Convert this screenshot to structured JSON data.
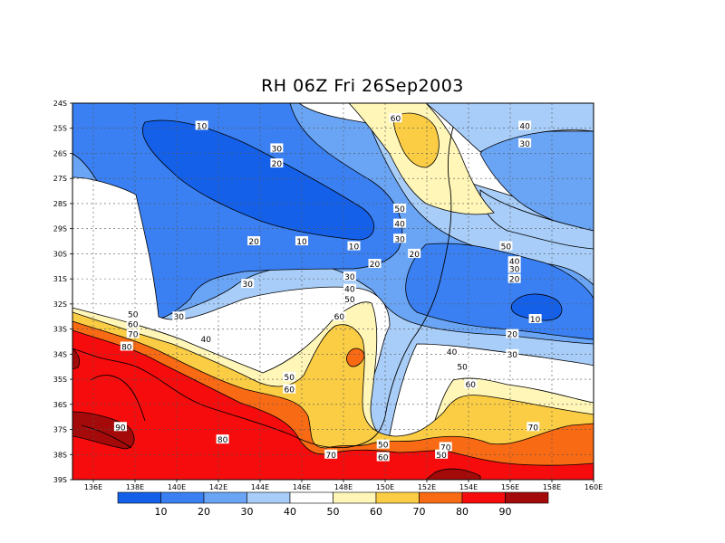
{
  "title": "RH 06Z Fri 26Sep2003",
  "lat_labels": [
    "24S",
    "25S",
    "26S",
    "27S",
    "28S",
    "29S",
    "30S",
    "31S",
    "32S",
    "33S",
    "34S",
    "35S",
    "36S",
    "37S",
    "38S",
    "39S"
  ],
  "lon_labels": [
    "136E",
    "138E",
    "140E",
    "142E",
    "144E",
    "146E",
    "148E",
    "150E",
    "152E",
    "154E",
    "156E",
    "158E",
    "160E"
  ],
  "colorbar": {
    "labels": [
      "10",
      "20",
      "30",
      "40",
      "50",
      "60",
      "70",
      "80",
      "90"
    ],
    "colors": [
      "#1560e8",
      "#3a80f2",
      "#6aa5f5",
      "#a8cdf8",
      "#ffffff",
      "#fff6b8",
      "#fbcd45",
      "#f96a14",
      "#f60c0c",
      "#a50a0a"
    ]
  },
  "contour_labels": [
    {
      "text": "10",
      "lon": 141.2,
      "lat": -24.9
    },
    {
      "text": "60",
      "lon": 150.5,
      "lat": -24.6
    },
    {
      "text": "40",
      "lon": 156.7,
      "lat": -24.9
    },
    {
      "text": "30",
      "lon": 144.8,
      "lat": -25.8
    },
    {
      "text": "20",
      "lon": 144.8,
      "lat": -26.4
    },
    {
      "text": "30",
      "lon": 156.7,
      "lat": -25.6
    },
    {
      "text": "50",
      "lon": 150.7,
      "lat": -28.2
    },
    {
      "text": "40",
      "lon": 150.7,
      "lat": -28.8
    },
    {
      "text": "30",
      "lon": 150.7,
      "lat": -29.4
    },
    {
      "text": "20",
      "lon": 143.7,
      "lat": -29.5
    },
    {
      "text": "10",
      "lon": 146.0,
      "lat": -29.5
    },
    {
      "text": "10",
      "lon": 148.5,
      "lat": -29.7
    },
    {
      "text": "20",
      "lon": 151.4,
      "lat": -30.0
    },
    {
      "text": "50",
      "lon": 155.8,
      "lat": -29.7
    },
    {
      "text": "40",
      "lon": 156.2,
      "lat": -30.3
    },
    {
      "text": "30",
      "lon": 156.2,
      "lat": -30.6
    },
    {
      "text": "20",
      "lon": 156.2,
      "lat": -31.0
    },
    {
      "text": "20",
      "lon": 149.5,
      "lat": -30.4
    },
    {
      "text": "30",
      "lon": 148.3,
      "lat": -30.9
    },
    {
      "text": "30",
      "lon": 143.4,
      "lat": -31.2
    },
    {
      "text": "40",
      "lon": 148.3,
      "lat": -31.4
    },
    {
      "text": "50",
      "lon": 148.3,
      "lat": -31.8
    },
    {
      "text": "10",
      "lon": 157.2,
      "lat": -32.6
    },
    {
      "text": "50",
      "lon": 137.9,
      "lat": -32.4
    },
    {
      "text": "60",
      "lon": 137.9,
      "lat": -32.8
    },
    {
      "text": "70",
      "lon": 137.9,
      "lat": -33.2
    },
    {
      "text": "80",
      "lon": 137.6,
      "lat": -33.7
    },
    {
      "text": "30",
      "lon": 140.1,
      "lat": -32.5
    },
    {
      "text": "60",
      "lon": 147.8,
      "lat": -32.5
    },
    {
      "text": "40",
      "lon": 141.4,
      "lat": -33.4
    },
    {
      "text": "20",
      "lon": 156.1,
      "lat": -33.2
    },
    {
      "text": "30",
      "lon": 156.1,
      "lat": -34.0
    },
    {
      "text": "40",
      "lon": 153.2,
      "lat": -33.9
    },
    {
      "text": "50",
      "lon": 153.7,
      "lat": -34.5
    },
    {
      "text": "60",
      "lon": 154.1,
      "lat": -35.2
    },
    {
      "text": "50",
      "lon": 145.4,
      "lat": -34.9
    },
    {
      "text": "60",
      "lon": 145.4,
      "lat": -35.4
    },
    {
      "text": "90",
      "lon": 137.3,
      "lat": -36.9
    },
    {
      "text": "80",
      "lon": 142.2,
      "lat": -37.4
    },
    {
      "text": "70",
      "lon": 157.1,
      "lat": -36.9
    },
    {
      "text": "50",
      "lon": 149.9,
      "lat": -37.6
    },
    {
      "text": "60",
      "lon": 149.9,
      "lat": -38.1
    },
    {
      "text": "70",
      "lon": 152.9,
      "lat": -37.7
    },
    {
      "text": "50",
      "lon": 152.7,
      "lat": -38.0
    },
    {
      "text": "70",
      "lon": 147.4,
      "lat": -38.0
    }
  ]
}
